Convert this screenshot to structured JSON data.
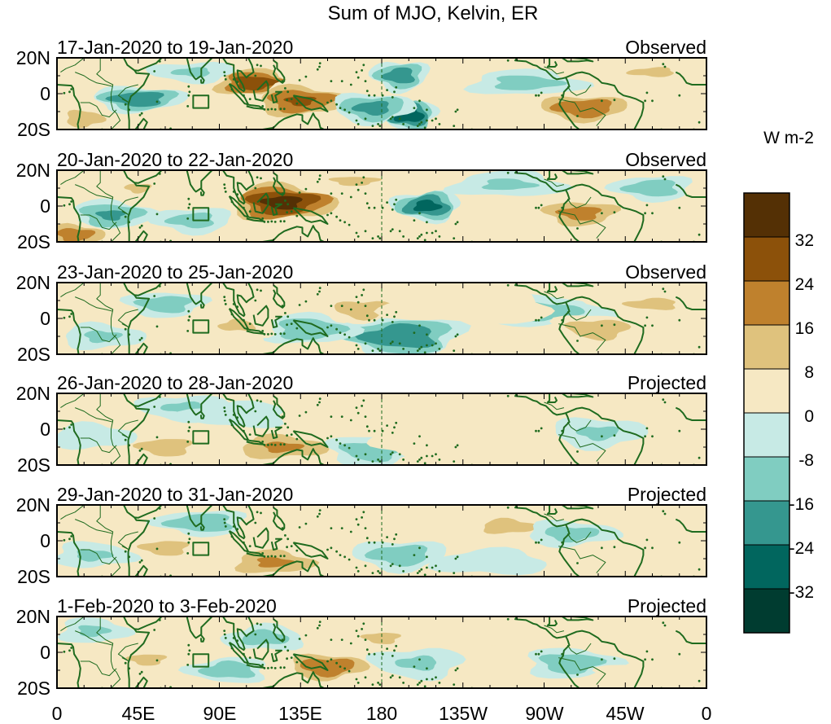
{
  "chart_data": {
    "type": "heatmap",
    "title": "Sum of MJO, Kelvin, ER",
    "units": "W m-2",
    "x_ticks": [
      "0",
      "45E",
      "90E",
      "135E",
      "180",
      "135W",
      "90W",
      "45W",
      "0"
    ],
    "y_ticks": [
      "20N",
      "0",
      "20S"
    ],
    "xlim_deg": [
      0,
      360
    ],
    "ylim_deg": [
      -20,
      20
    ],
    "colorbar": {
      "labels": [
        "32",
        "24",
        "16",
        "8",
        "0",
        "-8",
        "-16",
        "-24",
        "-32"
      ],
      "levels": [
        40,
        32,
        24,
        16,
        8,
        0,
        -8,
        -16,
        -24,
        -32,
        -40
      ],
      "colors": [
        "#543005",
        "#8c510a",
        "#bf812d",
        "#dfc27d",
        "#f6e8c3",
        "#c7eae5",
        "#80cdc1",
        "#35978f",
        "#01665e",
        "#003c30"
      ]
    },
    "panels": [
      {
        "period": "17-Jan-2020 to 19-Jan-2020",
        "status": "Observed",
        "blobs": [
          [
            110,
            6,
            16,
            6,
            30
          ],
          [
            135,
            -4,
            18,
            7,
            26
          ],
          [
            45,
            -3,
            16,
            5,
            -24
          ],
          [
            190,
            10,
            10,
            6,
            -22
          ],
          [
            195,
            -12,
            10,
            6,
            -32
          ],
          [
            175,
            -8,
            14,
            6,
            -20
          ],
          [
            292,
            -8,
            18,
            6,
            24
          ],
          [
            260,
            6,
            20,
            5,
            -12
          ],
          [
            15,
            -14,
            10,
            5,
            14
          ],
          [
            330,
            12,
            18,
            4,
            10
          ],
          [
            75,
            12,
            15,
            4,
            -10
          ]
        ]
      },
      {
        "period": "20-Jan-2020 to 22-Jan-2020",
        "status": "Observed",
        "blobs": [
          [
            125,
            2,
            20,
            8,
            36
          ],
          [
            205,
            0,
            12,
            6,
            -28
          ],
          [
            30,
            -5,
            14,
            6,
            -18
          ],
          [
            10,
            -16,
            12,
            5,
            22
          ],
          [
            290,
            -4,
            16,
            6,
            20
          ],
          [
            330,
            10,
            14,
            5,
            -14
          ],
          [
            250,
            12,
            20,
            5,
            -10
          ],
          [
            75,
            -8,
            14,
            5,
            -12
          ],
          [
            165,
            14,
            18,
            4,
            10
          ],
          [
            45,
            10,
            10,
            4,
            10
          ]
        ]
      },
      {
        "period": "23-Jan-2020 to 25-Jan-2020",
        "status": "Observed",
        "blobs": [
          [
            190,
            -10,
            22,
            8,
            -24
          ],
          [
            140,
            -6,
            16,
            6,
            -16
          ],
          [
            170,
            5,
            14,
            5,
            16
          ],
          [
            60,
            8,
            14,
            5,
            -14
          ],
          [
            270,
            4,
            22,
            6,
            -12
          ],
          [
            300,
            -6,
            16,
            6,
            14
          ],
          [
            25,
            -10,
            14,
            5,
            -10
          ],
          [
            230,
            6,
            30,
            6,
            8
          ],
          [
            330,
            8,
            20,
            5,
            10
          ],
          [
            100,
            -4,
            14,
            5,
            10
          ]
        ]
      },
      {
        "period": "26-Jan-2020 to 28-Jan-2020",
        "status": "Projected",
        "blobs": [
          [
            125,
            -10,
            20,
            6,
            18
          ],
          [
            60,
            -10,
            16,
            6,
            12
          ],
          [
            175,
            -12,
            16,
            6,
            -14
          ],
          [
            70,
            12,
            16,
            5,
            -10
          ],
          [
            100,
            8,
            18,
            5,
            -8
          ],
          [
            245,
            10,
            20,
            5,
            6
          ],
          [
            300,
            -2,
            16,
            6,
            -10
          ],
          [
            20,
            -4,
            14,
            5,
            -8
          ],
          [
            200,
            -8,
            16,
            5,
            8
          ],
          [
            340,
            12,
            16,
            4,
            6
          ]
        ]
      },
      {
        "period": "29-Jan-2020 to 31-Jan-2020",
        "status": "Projected",
        "blobs": [
          [
            80,
            10,
            16,
            5,
            -16
          ],
          [
            120,
            -12,
            18,
            6,
            18
          ],
          [
            60,
            -4,
            14,
            5,
            12
          ],
          [
            190,
            -8,
            16,
            6,
            -14
          ],
          [
            250,
            8,
            16,
            5,
            12
          ],
          [
            285,
            4,
            16,
            5,
            -12
          ],
          [
            240,
            -12,
            20,
            5,
            -8
          ],
          [
            20,
            -8,
            14,
            5,
            -10
          ],
          [
            310,
            -10,
            16,
            5,
            8
          ],
          [
            160,
            4,
            14,
            5,
            8
          ]
        ]
      },
      {
        "period": "1-Feb-2020 to 3-Feb-2020",
        "status": "Projected",
        "blobs": [
          [
            150,
            -8,
            16,
            6,
            24
          ],
          [
            95,
            -10,
            14,
            5,
            -14
          ],
          [
            115,
            8,
            14,
            5,
            -12
          ],
          [
            50,
            -4,
            14,
            5,
            10
          ],
          [
            200,
            -6,
            16,
            6,
            -10
          ],
          [
            250,
            10,
            20,
            5,
            8
          ],
          [
            285,
            -6,
            16,
            6,
            -14
          ],
          [
            20,
            12,
            12,
            5,
            -10
          ],
          [
            330,
            -12,
            18,
            5,
            8
          ],
          [
            180,
            8,
            14,
            5,
            10
          ]
        ]
      }
    ]
  }
}
